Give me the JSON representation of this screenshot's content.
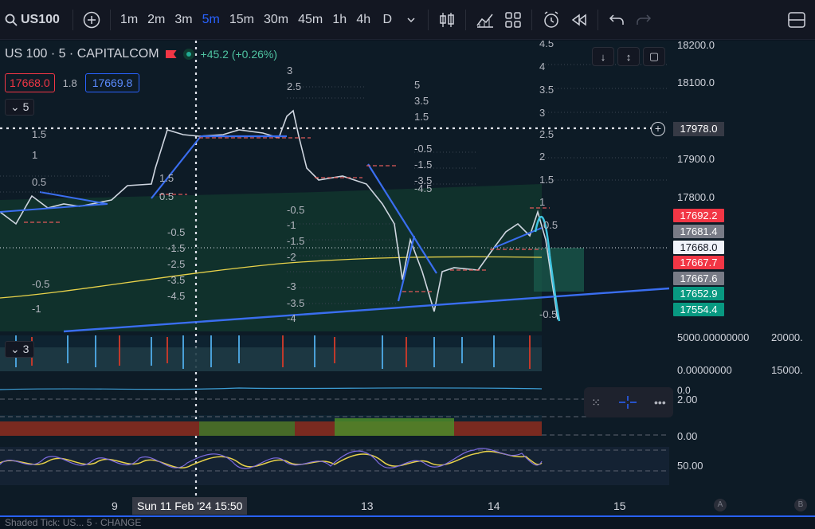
{
  "toolbar": {
    "symbol": "US100",
    "intervals": [
      "1m",
      "2m",
      "3m",
      "5m",
      "15m",
      "30m",
      "45m",
      "1h",
      "4h",
      "D"
    ],
    "active_interval": "5m"
  },
  "legend": {
    "title": "US 100 · 5 · CAPITALCOM",
    "change": "+45.2 (+0.26%)",
    "sell": "17668.0",
    "spread": "1.8",
    "buy": "17669.8",
    "collapse_count": "5",
    "indicator_count": "3"
  },
  "price_scale": {
    "ticks": [
      "18200.0",
      "18100.0",
      "17900.0",
      "17800.0"
    ],
    "cursor_price": "17978.0",
    "tags": [
      {
        "label": "17692.2",
        "color": "#f23645"
      },
      {
        "label": "17681.4",
        "color": "#787b86"
      },
      {
        "label": "17668.0",
        "color": "#f0f3fa"
      },
      {
        "label": "17667.7",
        "color": "#f23645"
      },
      {
        "label": "17667.6",
        "color": "#787b86"
      },
      {
        "label": "17652.9",
        "color": "#089981"
      },
      {
        "label": "17554.4",
        "color": "#089981"
      }
    ],
    "volume_high": "5000.00000000",
    "volume_low": "0.00000000",
    "right_high": "20000.",
    "right_low": "15000.",
    "pane2_top": "0.0",
    "pane2_mid": "2.00",
    "pane3": "0.00",
    "pane4": "50.00"
  },
  "time_axis": {
    "labels": [
      "9",
      "13",
      "14",
      "15"
    ],
    "cursor": "Sun 11 Feb '24   15:50",
    "a": "A",
    "b": "B"
  },
  "bottom_text": "Shaded Tick: US... 5 · CHANGE"
}
